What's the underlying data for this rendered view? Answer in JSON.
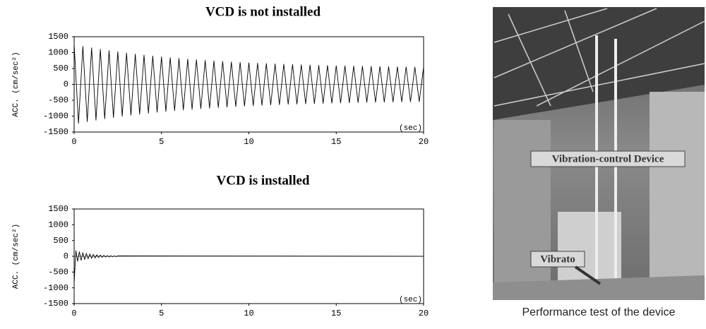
{
  "chart_data": [
    {
      "type": "line",
      "title": "VCD is not installed",
      "ylabel": "ACC. (cm/sec²)",
      "xlabel": "(sec)",
      "color": "#000000",
      "xlim": [
        0,
        20
      ],
      "xticks": [
        0,
        5,
        10,
        15,
        20
      ],
      "ylim": [
        -1500,
        1500
      ],
      "yticks": [
        -1500,
        -1000,
        -500,
        0,
        500,
        1000,
        1500
      ],
      "x": [
        0,
        0.25,
        0.5,
        0.75,
        1,
        1.25,
        1.5,
        1.75,
        2,
        2.25,
        2.5,
        2.75,
        3,
        3.25,
        3.5,
        3.75,
        4,
        4.25,
        4.5,
        4.75,
        5,
        5.25,
        5.5,
        5.75,
        6,
        6.25,
        6.5,
        6.75,
        7,
        7.25,
        7.5,
        7.75,
        8,
        8.25,
        8.5,
        8.75,
        9,
        9.25,
        9.5,
        9.75,
        10,
        10.25,
        10.5,
        10.75,
        11,
        11.25,
        11.5,
        11.75,
        12,
        12.25,
        12.5,
        12.75,
        13,
        13.25,
        13.5,
        13.75,
        14,
        14.25,
        14.5,
        14.75,
        15,
        15.25,
        15.5,
        15.75,
        16,
        16.25,
        16.5,
        16.75,
        17,
        17.25,
        17.5,
        17.75,
        18,
        18.25,
        18.5,
        18.75,
        19,
        19.25,
        19.5,
        19.75,
        20
      ],
      "values": [
        1250,
        -1224,
        1198,
        -1174,
        1150,
        -1128,
        1105,
        -1084,
        1063,
        -1044,
        1025,
        -1006,
        988,
        -971,
        955,
        -940,
        924,
        -909,
        894,
        -880,
        867,
        -854,
        842,
        -830,
        818,
        -807,
        796,
        -786,
        776,
        -766,
        757,
        -748,
        739,
        -731,
        723,
        -715,
        707,
        -700,
        693,
        -686,
        680,
        -673,
        667,
        -661,
        656,
        -650,
        645,
        -640,
        635,
        -630,
        626,
        -621,
        617,
        -613,
        609,
        -605,
        601,
        -598,
        595,
        -591,
        588,
        -585,
        582,
        -579,
        576,
        -573,
        571,
        -568,
        566,
        -564,
        562,
        -559,
        557,
        -555,
        553,
        -551,
        550,
        -548,
        546,
        -544,
        543
      ]
    },
    {
      "type": "line",
      "title": "VCD is installed",
      "ylabel": "ACC. (cm/sec²)",
      "xlabel": "(sec)",
      "color": "#000000",
      "xlim": [
        0,
        20
      ],
      "xticks": [
        0,
        5,
        10,
        15,
        20
      ],
      "ylim": [
        -1500,
        1500
      ],
      "yticks": [
        -1500,
        -1000,
        -500,
        0,
        500,
        1000,
        1500
      ],
      "x": [
        0,
        0.1,
        0.2,
        0.3,
        0.4,
        0.5,
        0.6,
        0.7,
        0.8,
        0.9,
        1,
        1.1,
        1.2,
        1.3,
        1.4,
        1.5,
        1.6,
        1.7,
        1.8,
        1.9,
        2,
        2.1,
        2.2,
        2.3,
        2.4,
        2.5,
        20
      ],
      "values": [
        -850,
        179,
        -160,
        143,
        -128,
        115,
        -103,
        92,
        -82,
        74,
        -66,
        59,
        -53,
        47,
        -42,
        38,
        -34,
        30,
        -27,
        24,
        -22,
        19,
        -17,
        15,
        -14,
        12,
        0
      ]
    }
  ],
  "photo": {
    "labels": [
      "Vibration-control Device",
      "Vibrato"
    ],
    "caption": "Performance test of the device"
  }
}
